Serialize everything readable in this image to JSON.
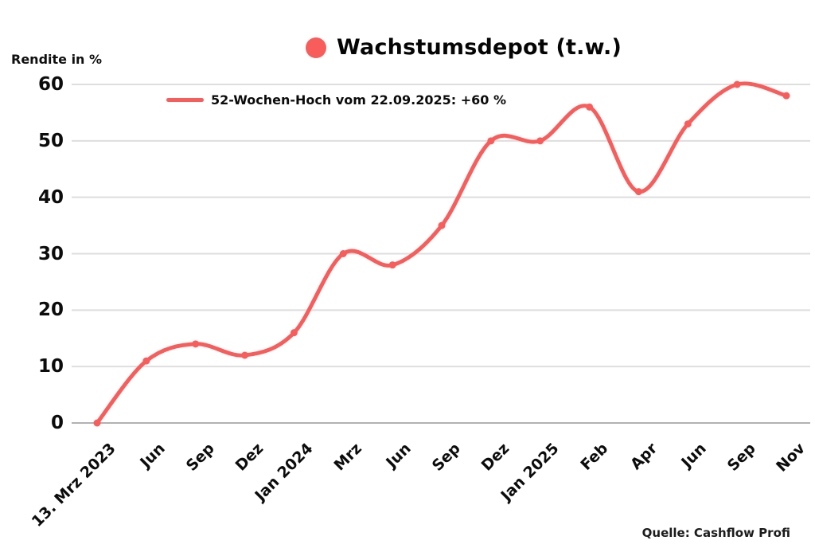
{
  "title": {
    "text": "Wachstumsdepot (t.w.)"
  },
  "y_axis": {
    "label": "Rendite in %"
  },
  "legend": {
    "label": "52-Wochen-Hoch vom 22.09.2025: +60 %"
  },
  "source": {
    "text": "Quelle: Cashflow Profi"
  },
  "colors": {
    "line": "#f95d5b",
    "grid": "#dedede",
    "zero_line": "#b2b2b2",
    "text": "#0f0f0f",
    "background": "#ffffff"
  },
  "chart_data": {
    "type": "line",
    "title": "Wachstumsdepot (t.w.)",
    "ylabel": "Rendite in %",
    "xlabel": "",
    "categories": [
      "13. Mrz 2023",
      "Jun",
      "Sep",
      "Dez",
      "Jan 2024",
      "Mrz",
      "Jun",
      "Sep",
      "Dez",
      "Jan 2025",
      "Feb",
      "Apr",
      "Jun",
      "Sep",
      "Nov"
    ],
    "values": [
      0,
      11,
      14,
      12,
      16,
      30,
      28,
      35,
      50,
      50,
      56,
      41,
      53,
      60,
      58
    ],
    "ylim": [
      0,
      60
    ],
    "yticks": [
      0,
      10,
      20,
      30,
      40,
      50,
      60
    ],
    "grid": "horizontal",
    "legend_position": "top-left",
    "smooth": true,
    "markers": true,
    "annotation": "52-Wochen-Hoch vom 22.09.2025: +60 %"
  }
}
